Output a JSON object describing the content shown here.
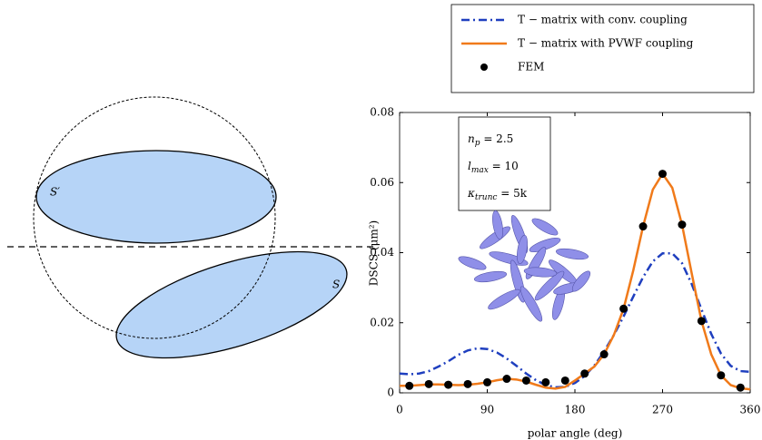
{
  "diagram": {
    "labels": [
      "S′",
      "S"
    ]
  },
  "chart_data": {
    "type": "line",
    "xlabel": "polar angle (deg)",
    "ylabel": "DSCS (μm²)",
    "xlim": [
      0,
      360
    ],
    "xticks": [
      0,
      90,
      180,
      270,
      360
    ],
    "ylim": [
      0,
      0.08
    ],
    "yticks": [
      0,
      0.02,
      0.04,
      0.06,
      0.08
    ],
    "legend": "top",
    "annotations": [
      {
        "base": "n",
        "sub": "p",
        "rest": " = 2.5"
      },
      {
        "base": "l",
        "sub": "max",
        "rest": " = 10"
      },
      {
        "base": "κ",
        "sub": "trunc",
        "rest": " = 5k"
      }
    ],
    "x": [
      0,
      10,
      20,
      30,
      40,
      50,
      60,
      70,
      80,
      90,
      100,
      110,
      120,
      130,
      140,
      150,
      160,
      170,
      180,
      190,
      200,
      210,
      220,
      230,
      240,
      250,
      260,
      270,
      280,
      290,
      300,
      310,
      320,
      330,
      340,
      350,
      360
    ],
    "series": [
      {
        "name": "T − matrix with conv. coupling",
        "color": "#1f3fbf",
        "linestyle": "dash-dot",
        "values": [
          0.0055,
          0.0053,
          0.0055,
          0.0062,
          0.0075,
          0.009,
          0.0108,
          0.0121,
          0.0127,
          0.0125,
          0.0115,
          0.0098,
          0.0077,
          0.0055,
          0.0036,
          0.0022,
          0.0016,
          0.0017,
          0.0028,
          0.0048,
          0.0078,
          0.0118,
          0.0165,
          0.0218,
          0.0275,
          0.033,
          0.0375,
          0.0398,
          0.0398,
          0.037,
          0.031,
          0.0238,
          0.0168,
          0.0112,
          0.0077,
          0.0062,
          0.006
        ]
      },
      {
        "name": "T − matrix with PVWF coupling",
        "color": "#f07a1a",
        "linestyle": "solid",
        "values": [
          0.002,
          0.002,
          0.0022,
          0.0024,
          0.0024,
          0.0023,
          0.0022,
          0.0023,
          0.0026,
          0.003,
          0.0036,
          0.004,
          0.0038,
          0.0032,
          0.0023,
          0.0015,
          0.0012,
          0.0017,
          0.0035,
          0.0055,
          0.0075,
          0.011,
          0.0165,
          0.024,
          0.035,
          0.0475,
          0.058,
          0.0625,
          0.0585,
          0.048,
          0.034,
          0.0205,
          0.011,
          0.005,
          0.0022,
          0.0013,
          0.001
        ]
      },
      {
        "name": "FEM",
        "color": "#000000",
        "type": "scatter",
        "x": [
          10,
          30,
          50,
          70,
          90,
          110,
          130,
          150,
          170,
          190,
          210,
          230,
          250,
          270,
          290,
          310,
          330,
          350
        ],
        "values": [
          0.002,
          0.0025,
          0.0023,
          0.0025,
          0.003,
          0.004,
          0.0035,
          0.003,
          0.0035,
          0.0055,
          0.011,
          0.024,
          0.0475,
          0.0625,
          0.048,
          0.0205,
          0.005,
          0.0015
        ]
      }
    ]
  }
}
